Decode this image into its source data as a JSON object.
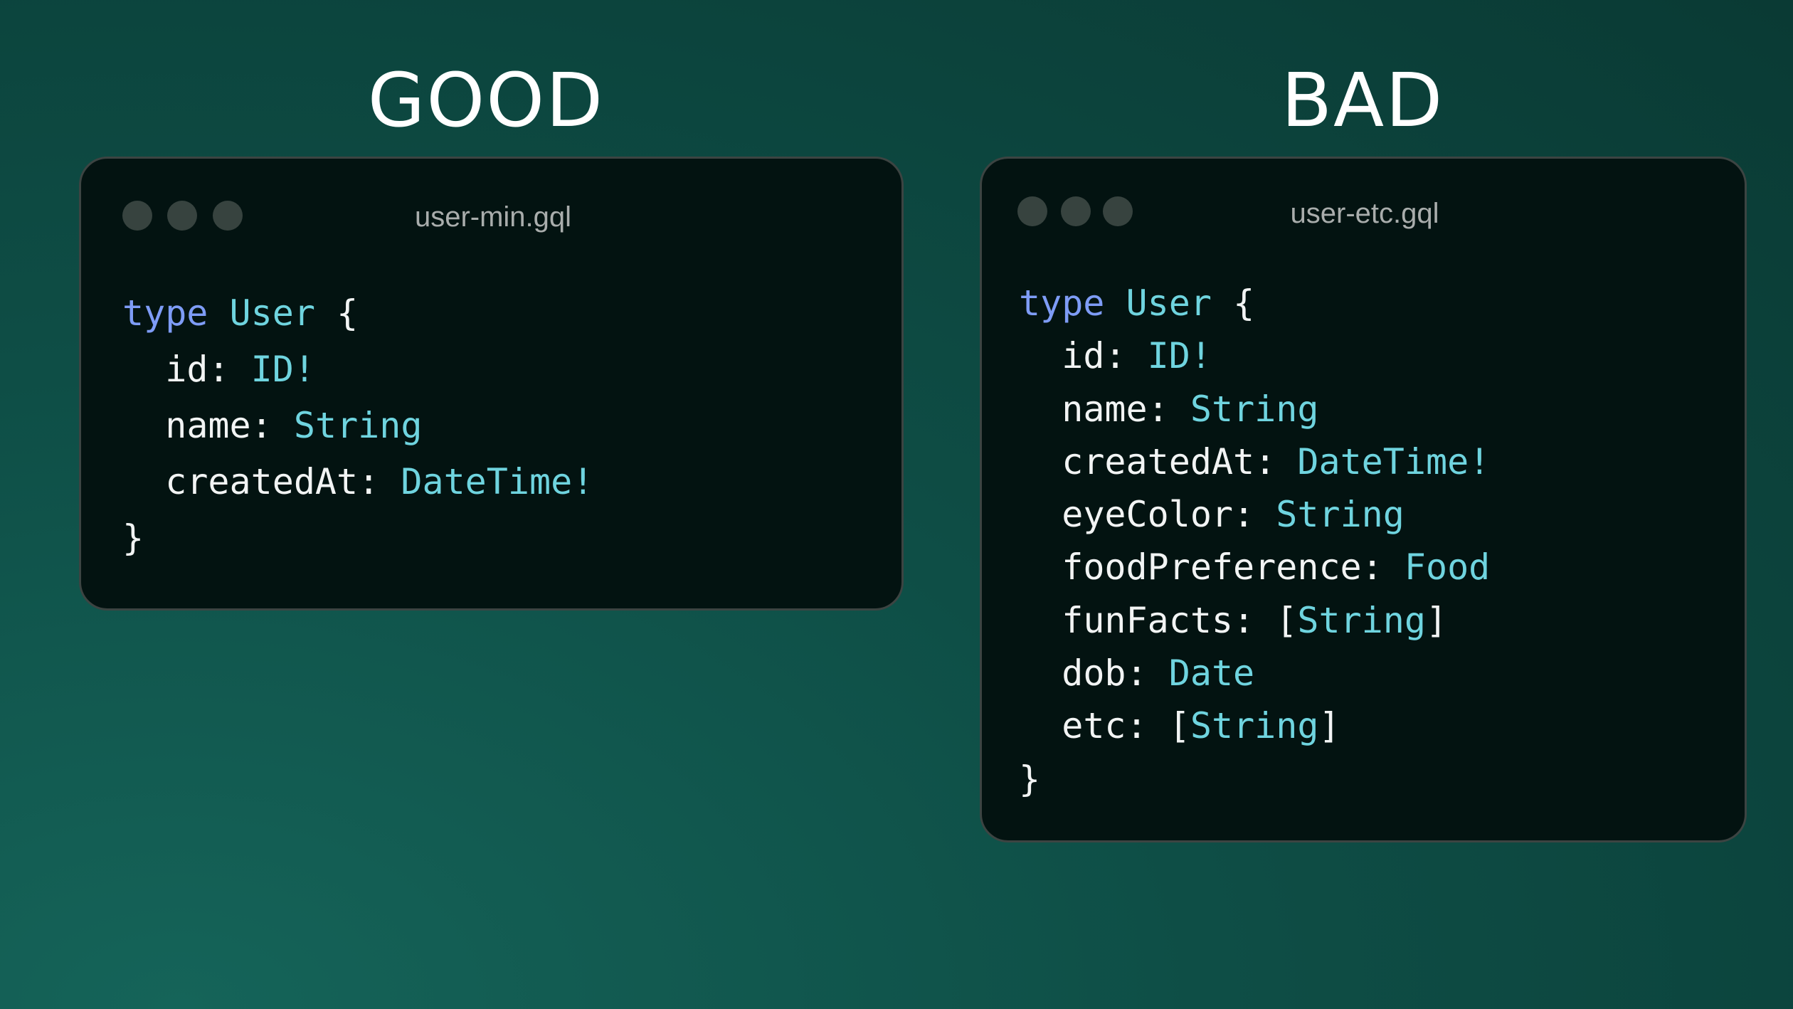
{
  "good": {
    "heading": "GOOD",
    "filename": "user-min.gql",
    "code": {
      "keyword": "type",
      "name": "User",
      "open": "{",
      "close": "}",
      "fields": [
        {
          "name": "id",
          "type": "ID!"
        },
        {
          "name": "name",
          "type": "String"
        },
        {
          "name": "createdAt",
          "type": "DateTime!"
        }
      ]
    }
  },
  "bad": {
    "heading": "BAD",
    "filename": "user-etc.gql",
    "code": {
      "keyword": "type",
      "name": "User",
      "open": "{",
      "close": "}",
      "fields": [
        {
          "name": "id",
          "type": "ID!"
        },
        {
          "name": "name",
          "type": "String"
        },
        {
          "name": "createdAt",
          "type": "DateTime!"
        },
        {
          "name": "eyeColor",
          "type": "String"
        },
        {
          "name": "foodPreference",
          "type": "Food"
        },
        {
          "name": "funFacts",
          "type": "String",
          "list": true
        },
        {
          "name": "dob",
          "type": "Date"
        },
        {
          "name": "etc",
          "type": "String",
          "list": true
        }
      ]
    }
  },
  "colors": {
    "keyword": "#7e9cf6",
    "type": "#6fd4df",
    "text": "#f2f4f4",
    "card": "#031311"
  }
}
